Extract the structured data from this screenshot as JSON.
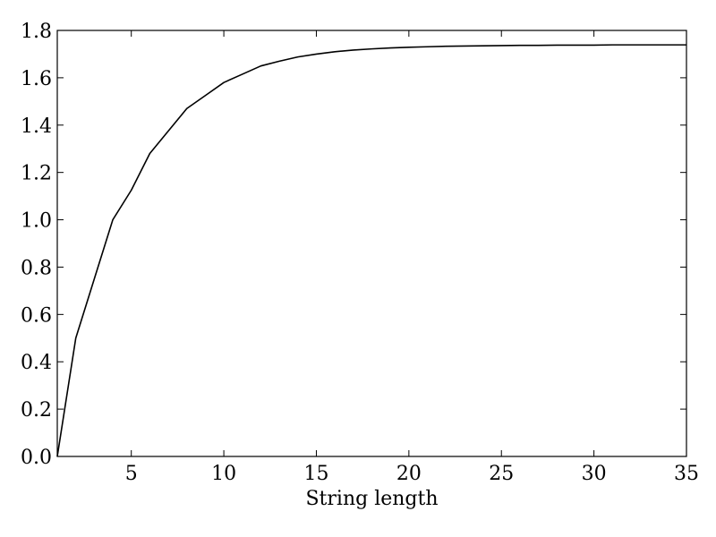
{
  "chart_data": {
    "type": "line",
    "title": "",
    "xlabel": "String length",
    "ylabel": "",
    "xlim": [
      1,
      35
    ],
    "ylim": [
      0.0,
      1.8
    ],
    "grid": false,
    "legend": "none",
    "x_ticks": [
      5,
      10,
      15,
      20,
      25,
      30,
      35
    ],
    "x_tick_labels": [
      "5",
      "10",
      "15",
      "20",
      "25",
      "30",
      "35"
    ],
    "y_ticks": [
      0.0,
      0.2,
      0.4,
      0.6,
      0.8,
      1.0,
      1.2,
      1.4,
      1.6,
      1.8
    ],
    "y_tick_labels": [
      "0.0",
      "0.2",
      "0.4",
      "0.6",
      "0.8",
      "1.0",
      "1.2",
      "1.4",
      "1.6",
      "1.8"
    ],
    "series": [
      {
        "color": "#000000",
        "x": [
          1,
          2,
          3,
          4,
          5,
          6,
          7,
          8,
          9,
          10,
          11,
          12,
          13,
          14,
          15,
          16,
          17,
          18,
          19,
          20,
          21,
          22,
          23,
          24,
          25,
          26,
          27,
          28,
          29,
          30,
          31,
          32,
          33,
          34,
          35
        ],
        "values": [
          0.0,
          0.5,
          0.75,
          1.0,
          1.125,
          1.28,
          1.375,
          1.47,
          1.525,
          1.58,
          1.615,
          1.65,
          1.67,
          1.688,
          1.7,
          1.71,
          1.717,
          1.722,
          1.726,
          1.729,
          1.731,
          1.733,
          1.734,
          1.735,
          1.736,
          1.737,
          1.737,
          1.738,
          1.738,
          1.738,
          1.739,
          1.739,
          1.739,
          1.739,
          1.739
        ]
      }
    ]
  }
}
